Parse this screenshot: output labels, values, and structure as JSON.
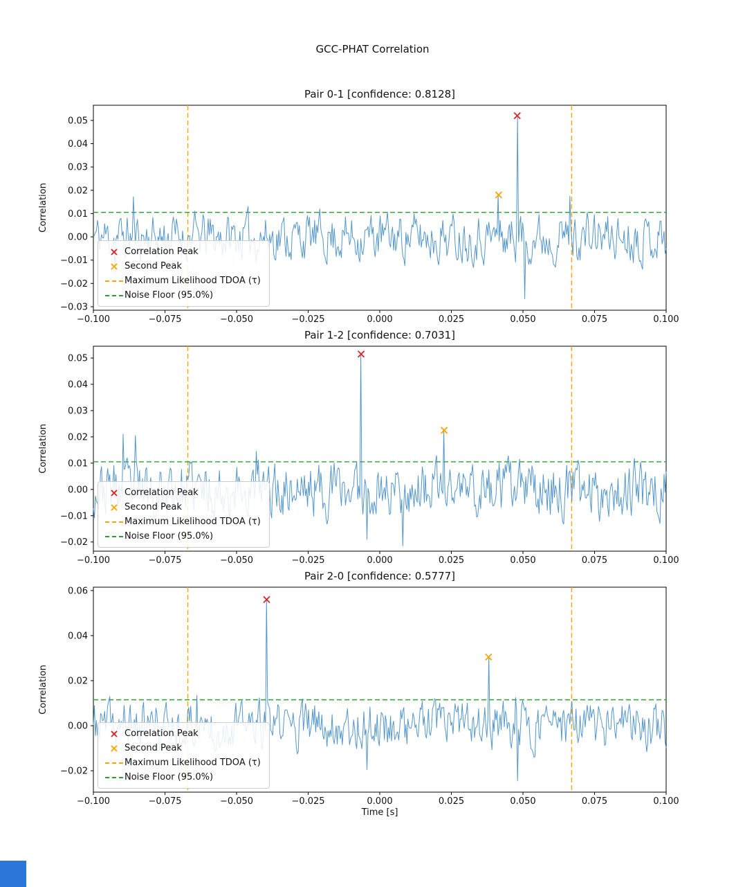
{
  "figure": {
    "title": "GCC-PHAT Correlation",
    "xlabel": "Time [s]",
    "background": "#ffffff"
  },
  "colors": {
    "signal": "#4a90c9",
    "peak": "#d62728",
    "second_peak": "#ffa500",
    "tdoa": "#ffa500",
    "noise_floor": "#2ca02c",
    "text": "#111111",
    "corner_square": "#2b76d9"
  },
  "legend": {
    "position": "lower left",
    "items": [
      {
        "label": "Correlation Peak",
        "marker": "x",
        "color": "#d62728"
      },
      {
        "label": "Second Peak",
        "marker": "x",
        "color": "#ffa500"
      },
      {
        "label": "Maximum Likelihood TDOA (τ)",
        "marker": "dash",
        "color": "#ffa500"
      },
      {
        "label": "Noise Floor (95.0%)",
        "marker": "dash",
        "color": "#2ca02c"
      }
    ]
  },
  "chart_data": [
    {
      "type": "line",
      "title": "Pair 0-1 [confidence: 0.8128]",
      "pair": "0-1",
      "confidence": 0.8128,
      "ylabel": "Correlation",
      "grid": false,
      "xlim": [
        -0.1,
        0.1
      ],
      "ylim": [
        -0.0315,
        0.0565
      ],
      "xticks": {
        "values": [
          -0.1,
          -0.075,
          -0.05,
          -0.025,
          0,
          0.025,
          0.05,
          0.075,
          0.1
        ],
        "labels": [
          "−0.100",
          "−0.075",
          "−0.050",
          "−0.025",
          "0.000",
          "0.025",
          "0.050",
          "0.075",
          "0.100"
        ]
      },
      "yticks": {
        "values": [
          0.05,
          0.04,
          0.03,
          0.02,
          0.01,
          0,
          -0.01,
          -0.02,
          -0.03
        ],
        "labels": [
          "0.05",
          "0.04",
          "0.03",
          "0.02",
          "0.01",
          "0.00",
          "−0.01",
          "−0.02",
          "−0.03"
        ]
      },
      "peak": {
        "x": 0.048,
        "y": 0.052
      },
      "second_peak": {
        "x": 0.0415,
        "y": 0.018
      },
      "tdoa_lines": [
        -0.067,
        0.067
      ],
      "noise_floor": 0.0105,
      "noise_floor_pct": "95.0%",
      "signal": {
        "seed": 11,
        "n": 560,
        "persistence": 0.45,
        "amplitude": 0.0085,
        "features": [
          {
            "x": -0.086,
            "y": 0.0172
          },
          {
            "x": -0.0925,
            "y": -0.0155
          },
          {
            "x": 0.0505,
            "y": -0.0265
          },
          {
            "x": 0.0665,
            "y": 0.0175
          }
        ]
      }
    },
    {
      "type": "line",
      "title": "Pair 1-2 [confidence: 0.7031]",
      "pair": "1-2",
      "confidence": 0.7031,
      "ylabel": "Correlation",
      "grid": false,
      "xlim": [
        -0.1,
        0.1
      ],
      "ylim": [
        -0.0235,
        0.0545
      ],
      "xticks": {
        "values": [
          -0.1,
          -0.075,
          -0.05,
          -0.025,
          0,
          0.025,
          0.05,
          0.075,
          0.1
        ],
        "labels": [
          "−0.100",
          "−0.075",
          "−0.050",
          "−0.025",
          "0.000",
          "0.025",
          "0.050",
          "0.075",
          "0.100"
        ]
      },
      "yticks": {
        "values": [
          0.05,
          0.04,
          0.03,
          0.02,
          0.01,
          0,
          -0.01,
          -0.02
        ],
        "labels": [
          "0.05",
          "0.04",
          "0.03",
          "0.02",
          "0.01",
          "0.00",
          "−0.01",
          "−0.02"
        ]
      },
      "peak": {
        "x": -0.0065,
        "y": 0.0515
      },
      "second_peak": {
        "x": 0.0225,
        "y": 0.0225
      },
      "tdoa_lines": [
        -0.067,
        0.067
      ],
      "noise_floor": 0.0105,
      "noise_floor_pct": "95.0%",
      "signal": {
        "seed": 23,
        "n": 560,
        "persistence": 0.45,
        "amplitude": 0.0088,
        "features": [
          {
            "x": -0.0895,
            "y": 0.021
          },
          {
            "x": -0.0855,
            "y": 0.0205
          },
          {
            "x": -0.043,
            "y": 0.0145
          },
          {
            "x": 0.008,
            "y": -0.0215
          },
          {
            "x": -0.0045,
            "y": -0.019
          }
        ]
      }
    },
    {
      "type": "line",
      "title": "Pair 2-0 [confidence: 0.5777]",
      "pair": "2-0",
      "confidence": 0.5777,
      "ylabel": "Correlation",
      "grid": false,
      "xlim": [
        -0.1,
        0.1
      ],
      "ylim": [
        -0.0295,
        0.0615
      ],
      "xticks": {
        "values": [
          -0.1,
          -0.075,
          -0.05,
          -0.025,
          0,
          0.025,
          0.05,
          0.075,
          0.1
        ],
        "labels": [
          "−0.100",
          "−0.075",
          "−0.050",
          "−0.025",
          "0.000",
          "0.025",
          "0.050",
          "0.075",
          "0.100"
        ]
      },
      "yticks": {
        "values": [
          0.06,
          0.04,
          0.02,
          0,
          -0.02
        ],
        "labels": [
          "0.06",
          "0.04",
          "0.02",
          "0.00",
          "−0.02"
        ]
      },
      "peak": {
        "x": -0.0395,
        "y": 0.056
      },
      "second_peak": {
        "x": 0.038,
        "y": 0.0305
      },
      "tdoa_lines": [
        -0.067,
        0.067
      ],
      "noise_floor": 0.0115,
      "noise_floor_pct": "95.0%",
      "signal": {
        "seed": 37,
        "n": 560,
        "persistence": 0.45,
        "amplitude": 0.0088,
        "features": [
          {
            "x": 0.048,
            "y": -0.0245
          },
          {
            "x": -0.0045,
            "y": -0.0195
          },
          {
            "x": -0.064,
            "y": 0.0135
          },
          {
            "x": 0.0475,
            "y": 0.0125
          }
        ]
      }
    }
  ]
}
